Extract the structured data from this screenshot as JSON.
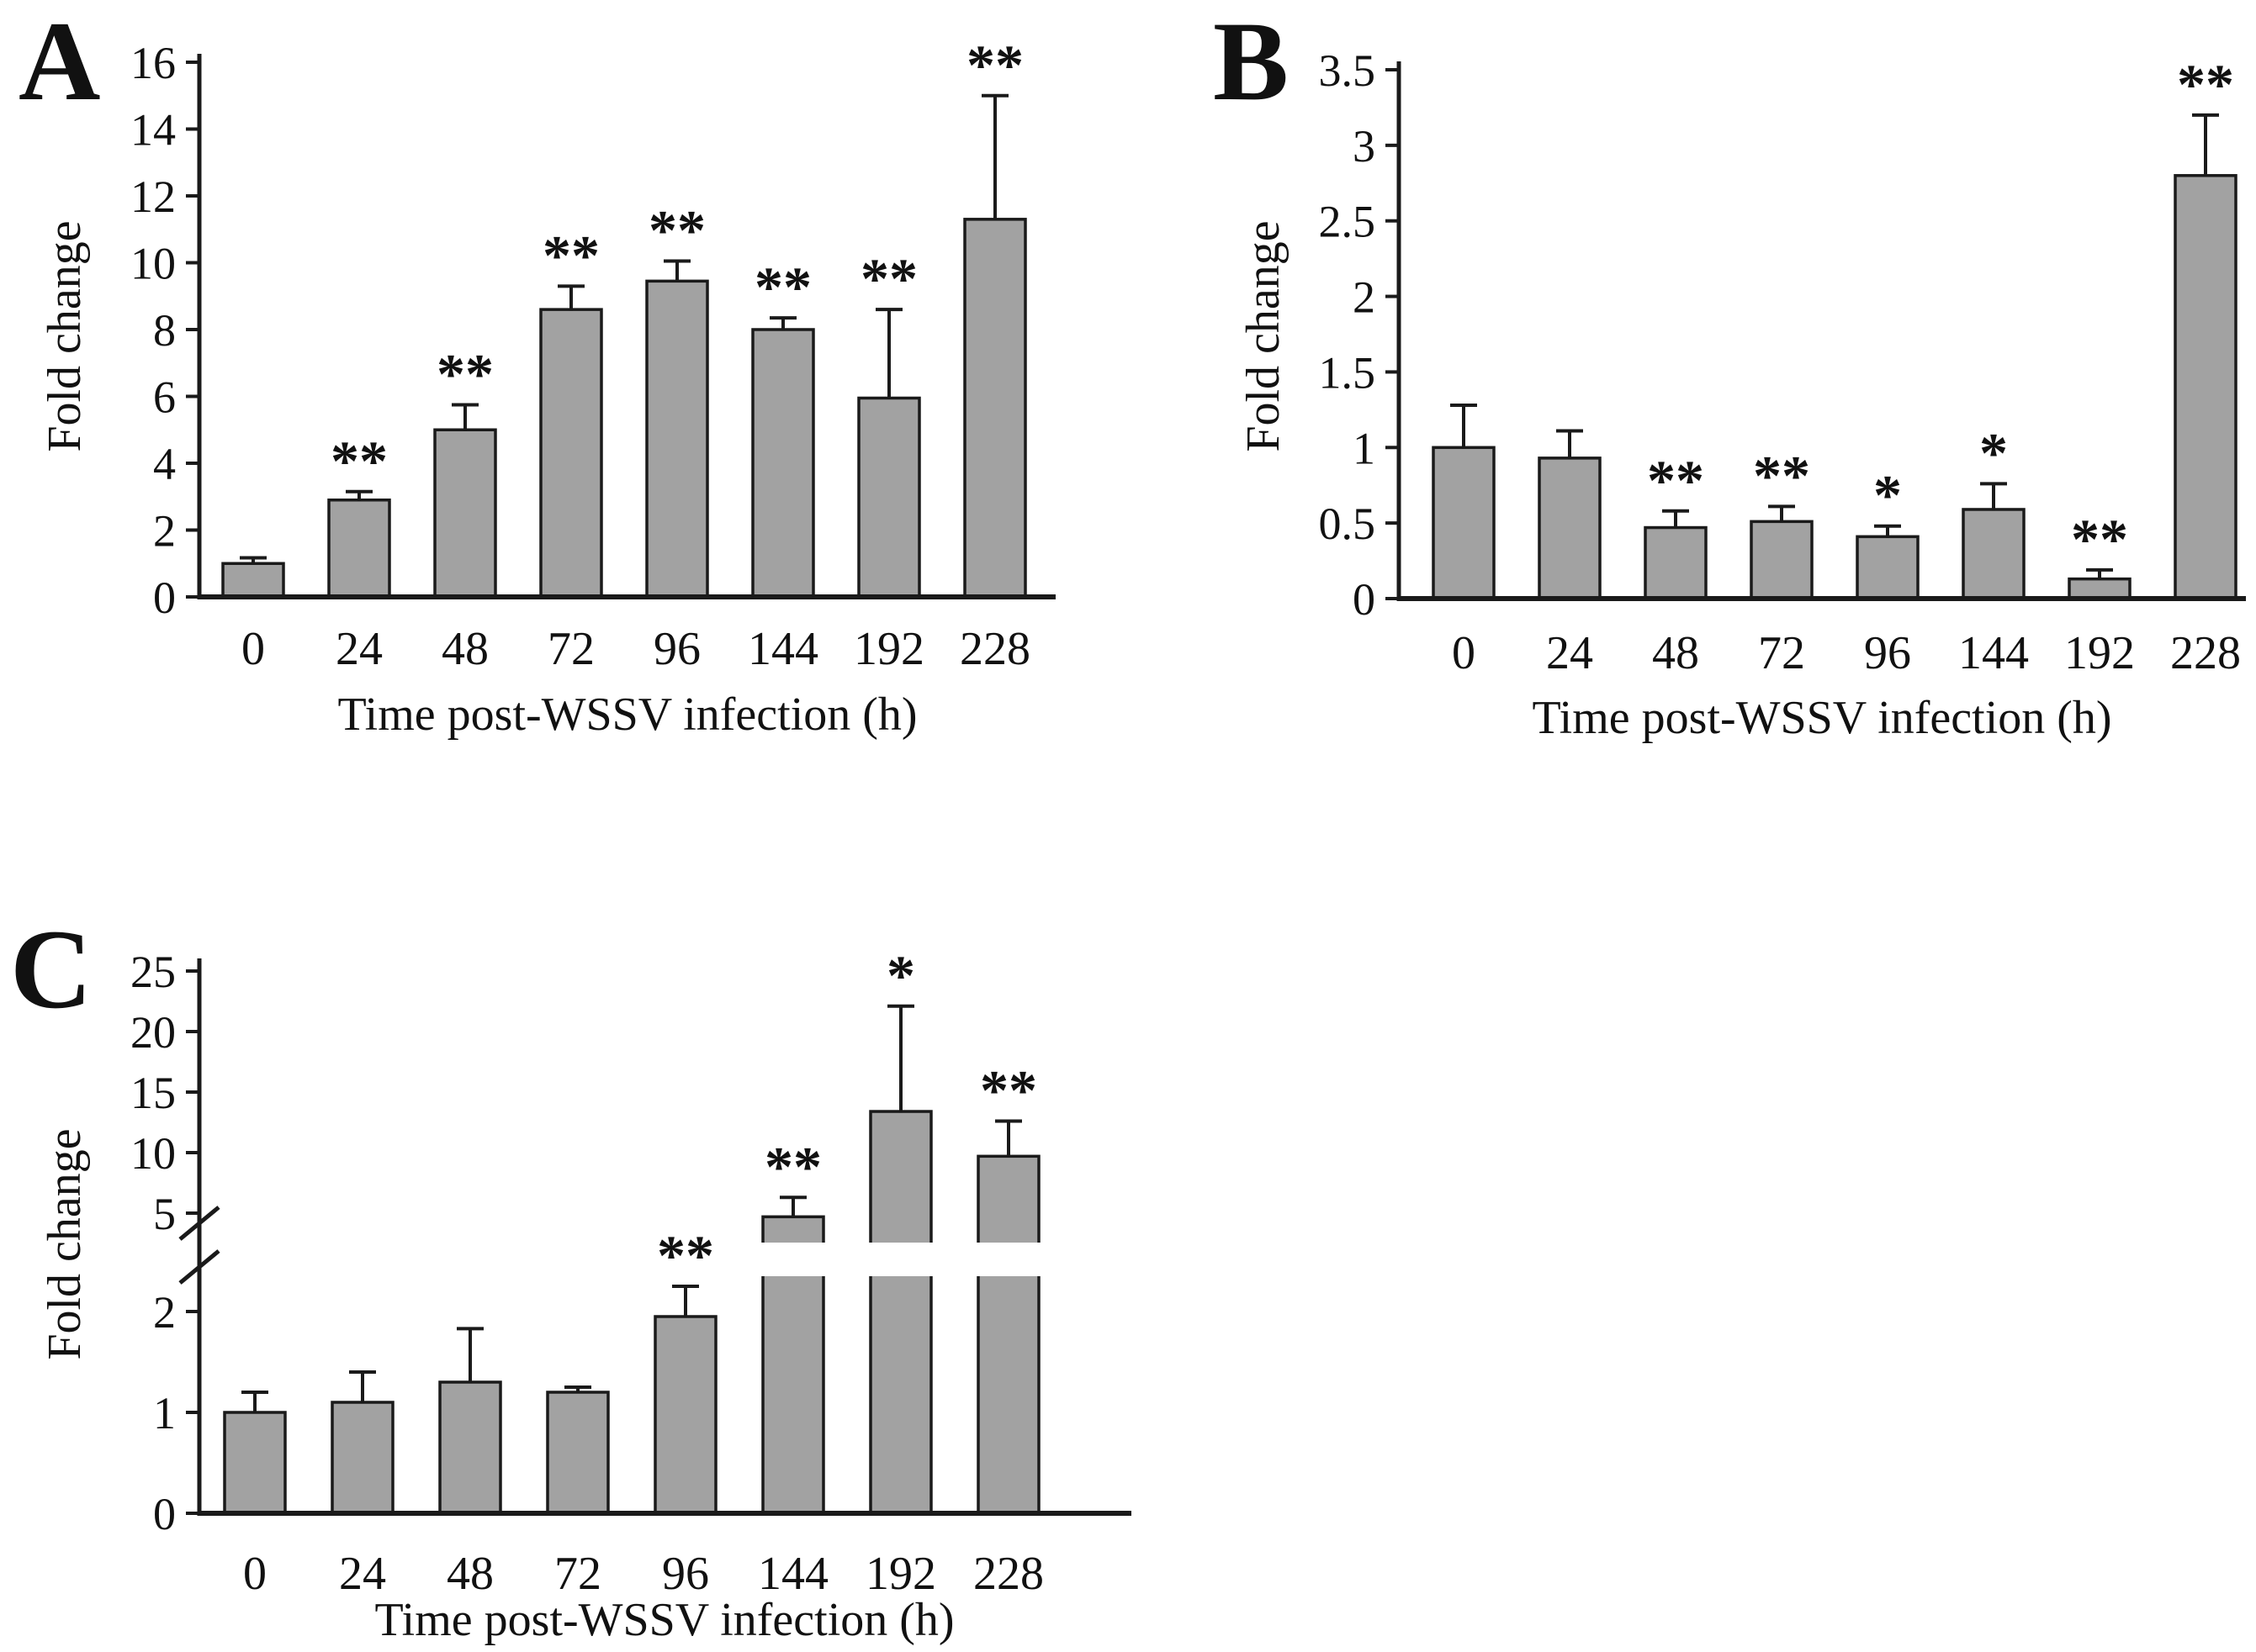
{
  "figure": {
    "background": "#ffffff",
    "bar_fill": "#a2a2a2",
    "bar_stroke": "#1a1a1a",
    "axis_color": "#1a1a1a",
    "text_color": "#111111"
  },
  "chart_data": [
    {
      "type": "bar",
      "panel": "A",
      "title": "",
      "xlabel": "Time post-WSSV infection (h)",
      "ylabel": "Fold change",
      "categories": [
        "0",
        "24",
        "48",
        "72",
        "96",
        "144",
        "192",
        "228"
      ],
      "values": [
        1.0,
        2.9,
        5.0,
        8.6,
        9.45,
        8.0,
        5.95,
        11.3
      ],
      "errors": [
        0.17,
        0.25,
        0.75,
        0.7,
        0.6,
        0.35,
        2.65,
        3.7
      ],
      "significance": [
        "",
        "**",
        "**",
        "**",
        "**",
        "**",
        "**",
        "**"
      ],
      "yticks": [
        0,
        2,
        4,
        6,
        8,
        10,
        12,
        14,
        16
      ],
      "ylim": [
        0,
        16
      ],
      "grid": false,
      "legend_position": null
    },
    {
      "type": "bar",
      "panel": "B",
      "title": "",
      "xlabel": "Time post-WSSV infection (h)",
      "ylabel": "Fold change",
      "categories": [
        "0",
        "24",
        "48",
        "72",
        "96",
        "144",
        "192",
        "228"
      ],
      "values": [
        1.0,
        0.93,
        0.47,
        0.51,
        0.41,
        0.59,
        0.13,
        2.8
      ],
      "errors": [
        0.28,
        0.18,
        0.11,
        0.1,
        0.07,
        0.17,
        0.06,
        0.4
      ],
      "significance": [
        "",
        "",
        "**",
        "**",
        "*",
        "*",
        "**",
        "**"
      ],
      "yticks": [
        0,
        0.5,
        1,
        1.5,
        2,
        2.5,
        3,
        3.5
      ],
      "ylim": [
        0,
        3.5
      ],
      "grid": false,
      "legend_position": null
    },
    {
      "type": "bar",
      "panel": "C",
      "title": "",
      "xlabel": "Time post-WSSV infection (h)",
      "ylabel": "Fold change",
      "categories": [
        "0",
        "24",
        "48",
        "72",
        "96",
        "144",
        "192",
        "228"
      ],
      "values": [
        1.0,
        1.1,
        1.3,
        1.2,
        1.95,
        4.7,
        13.4,
        9.7
      ],
      "errors": [
        0.2,
        0.3,
        0.53,
        0.05,
        0.3,
        1.6,
        8.7,
        2.9
      ],
      "significance": [
        "",
        "",
        "",
        "",
        "**",
        "**",
        "*",
        "**"
      ],
      "axis_break": {
        "lower_ylim": [
          0,
          2
        ],
        "lower_yticks": [
          0,
          1,
          2
        ],
        "upper_ylim": [
          5,
          25
        ],
        "upper_yticks": [
          5,
          10,
          15,
          20,
          25
        ]
      },
      "grid": false,
      "legend_position": null
    }
  ]
}
